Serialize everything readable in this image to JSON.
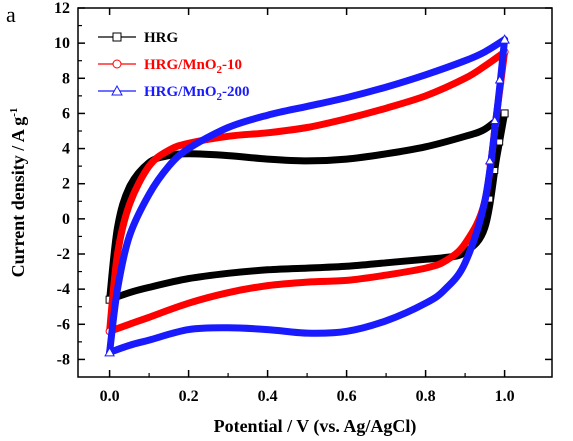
{
  "chart_data": {
    "type": "line",
    "panel_label": "a",
    "xlabel": "Potential / V (vs. Ag/AgCl)",
    "ylabel": "Current density / A g",
    "ylabel_sup": "-1",
    "xlim": [
      -0.08,
      1.12
    ],
    "ylim": [
      -9,
      12
    ],
    "xticks": [
      "0.0",
      "0.2",
      "0.4",
      "0.6",
      "0.8",
      "1.0"
    ],
    "yticks": [
      "-8",
      "-6",
      "-4",
      "-2",
      "0",
      "2",
      "4",
      "6",
      "8",
      "10",
      "12"
    ],
    "legend": {
      "placement": "top-left"
    },
    "series": [
      {
        "name": "HRG",
        "name_parts": [
          {
            "t": "HRG"
          }
        ],
        "color": "#000000",
        "marker": "square",
        "upper": {
          "x": [
            0.0,
            0.02,
            0.05,
            0.1,
            0.15,
            0.2,
            0.3,
            0.4,
            0.5,
            0.6,
            0.7,
            0.8,
            0.9,
            0.95,
            1.0
          ],
          "y": [
            -4.6,
            -0.5,
            1.8,
            3.2,
            3.6,
            3.7,
            3.6,
            3.4,
            3.3,
            3.4,
            3.7,
            4.1,
            4.7,
            5.1,
            6.0
          ]
        },
        "lower": {
          "x": [
            1.0,
            0.98,
            0.95,
            0.9,
            0.85,
            0.8,
            0.7,
            0.6,
            0.5,
            0.4,
            0.3,
            0.2,
            0.1,
            0.05,
            0.0
          ],
          "y": [
            6.0,
            3.5,
            -0.5,
            -1.9,
            -2.2,
            -2.3,
            -2.5,
            -2.7,
            -2.8,
            -2.9,
            -3.1,
            -3.4,
            -3.9,
            -4.2,
            -4.6
          ]
        }
      },
      {
        "name": "HRG/MnO2-10",
        "name_parts": [
          {
            "t": "HRG/MnO"
          },
          {
            "t": "2",
            "sub": true
          },
          {
            "t": "-10"
          }
        ],
        "color": "#ff0000",
        "marker": "circle",
        "upper": {
          "x": [
            0.0,
            0.02,
            0.05,
            0.1,
            0.15,
            0.2,
            0.3,
            0.4,
            0.5,
            0.6,
            0.7,
            0.8,
            0.9,
            0.95,
            1.0
          ],
          "y": [
            -6.4,
            -2.0,
            0.8,
            3.0,
            3.9,
            4.3,
            4.7,
            4.9,
            5.2,
            5.7,
            6.3,
            7.0,
            8.0,
            8.7,
            9.5
          ]
        },
        "lower": {
          "x": [
            1.0,
            0.98,
            0.95,
            0.9,
            0.85,
            0.8,
            0.7,
            0.6,
            0.5,
            0.4,
            0.3,
            0.2,
            0.1,
            0.05,
            0.0
          ],
          "y": [
            9.5,
            6.0,
            1.0,
            -1.4,
            -2.4,
            -2.8,
            -3.2,
            -3.5,
            -3.6,
            -3.8,
            -4.2,
            -4.8,
            -5.6,
            -6.0,
            -6.4
          ]
        }
      },
      {
        "name": "HRG/MnO2-200",
        "name_parts": [
          {
            "t": "HRG/MnO"
          },
          {
            "t": "2",
            "sub": true
          },
          {
            "t": "-200"
          }
        ],
        "color": "#1a1aff",
        "marker": "triangle",
        "upper": {
          "x": [
            0.0,
            0.02,
            0.05,
            0.1,
            0.15,
            0.2,
            0.3,
            0.4,
            0.5,
            0.6,
            0.7,
            0.8,
            0.9,
            0.95,
            1.0
          ],
          "y": [
            -7.6,
            -4.0,
            -1.0,
            1.4,
            3.0,
            4.0,
            5.2,
            5.9,
            6.4,
            6.9,
            7.5,
            8.2,
            9.0,
            9.5,
            10.2
          ]
        },
        "lower": {
          "x": [
            1.0,
            0.98,
            0.95,
            0.9,
            0.85,
            0.8,
            0.7,
            0.6,
            0.5,
            0.4,
            0.3,
            0.2,
            0.1,
            0.05,
            0.0
          ],
          "y": [
            10.2,
            6.0,
            1.0,
            -2.5,
            -4.0,
            -4.8,
            -5.8,
            -6.4,
            -6.5,
            -6.3,
            -6.2,
            -6.3,
            -6.9,
            -7.2,
            -7.6
          ]
        }
      }
    ]
  }
}
